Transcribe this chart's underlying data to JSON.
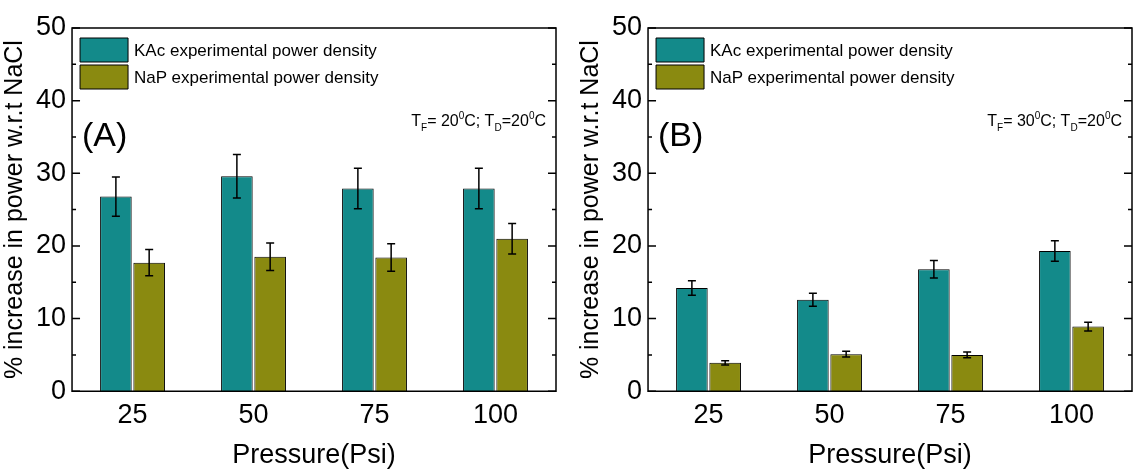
{
  "chart_data": [
    {
      "type": "bar",
      "xlabel": "Pressure(Psi)",
      "ylabel": "% increase in power w.r.t NaCl",
      "categories": [
        "25",
        "50",
        "75",
        "100"
      ],
      "series": [
        {
          "name": "KAc experimental power density",
          "color": "#138a8a",
          "values": [
            26.8,
            29.6,
            27.9,
            27.9
          ],
          "errors": [
            2.7,
            3.0,
            2.8,
            2.8
          ]
        },
        {
          "name": "NaP experimental power density",
          "color": "#8a8a10",
          "values": [
            17.7,
            18.5,
            18.4,
            21.0
          ],
          "errors": [
            1.8,
            1.9,
            1.9,
            2.1
          ]
        }
      ],
      "ylim": [
        0,
        50
      ],
      "yticks": [
        0,
        {
          "value": 5,
          "label": null
        },
        10,
        {
          "value": 15,
          "label": null
        },
        20,
        {
          "value": 25,
          "label": null
        },
        30,
        {
          "value": 35,
          "label": null
        },
        40,
        {
          "value": 45,
          "label": null
        },
        50
      ],
      "legend": "top left",
      "annotations": [
        "(A)",
        "T$_{F}$= 20$^{0}$C; T$_{D}$=20$^{0}$C"
      ]
    },
    {
      "type": "bar",
      "xlabel": "Pressure(Psi)",
      "ylabel": "% increase in power w.r.t NaCl",
      "categories": [
        "25",
        "50",
        "75",
        "100"
      ],
      "series": [
        {
          "name": "KAc experimental power density",
          "color": "#138a8a",
          "values": [
            14.2,
            12.6,
            16.8,
            19.3
          ],
          "errors": [
            1.0,
            0.9,
            1.2,
            1.4
          ]
        },
        {
          "name": "NaP experimental power density",
          "color": "#8a8a10",
          "values": [
            3.9,
            5.1,
            5.0,
            8.9
          ],
          "errors": [
            0.3,
            0.4,
            0.4,
            0.6
          ]
        }
      ],
      "ylim": [
        0,
        50
      ],
      "yticks": [
        0,
        {
          "value": 5,
          "label": null
        },
        10,
        {
          "value": 15,
          "label": null
        },
        20,
        {
          "value": 25,
          "label": null
        },
        30,
        {
          "value": 35,
          "label": null
        },
        40,
        {
          "value": 45,
          "label": null
        },
        50
      ],
      "legend": "top left",
      "annotations": [
        "(B)",
        "T$_{F}$= 30$^{0}$C; T$_{D}$=20$^{0}$C"
      ]
    }
  ]
}
